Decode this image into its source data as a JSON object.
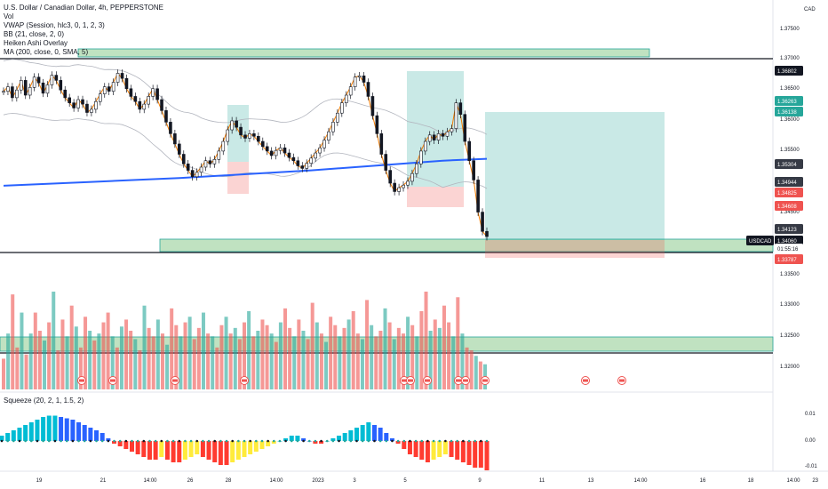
{
  "legend": {
    "symbol": "U.S. Dollar / Canadian Dollar, 4h, PEPPERSTONE",
    "lines": [
      "Vol",
      "VWAP (Session, hlc3, 0, 1, 2, 3)",
      "BB (21, close, 2, 0)",
      "Heiken Ashi Overlay",
      "MA (200, close, 0, SMA, 5)"
    ],
    "squeeze": "Squeeze (20, 2, 1, 1.5, 2)"
  },
  "currency": "CAD",
  "price_axis_ticks": [
    "1.37500",
    "1.37000",
    "1.36500",
    "1.36000",
    "1.35500",
    "1.35000",
    "1.34500",
    "1.34000",
    "1.33500",
    "1.33000",
    "1.32500",
    "1.32000"
  ],
  "price_tags": [
    {
      "text": "1.36802",
      "bg": "#131722"
    },
    {
      "text": "1.36263",
      "bg": "#26a69a"
    },
    {
      "text": "1.36138",
      "bg": "#26a69a"
    },
    {
      "text": "1.35304",
      "bg": "#363a45"
    },
    {
      "text": "1.34944",
      "bg": "#363a45"
    },
    {
      "text": "1.34825",
      "bg": "#ef5350"
    },
    {
      "text": "1.34608",
      "bg": "#ef5350"
    },
    {
      "text": "1.34123",
      "bg": "#363a45"
    },
    {
      "text": "1.34060",
      "bg": "#131722"
    },
    {
      "text": "01:55:16",
      "bg": "#ffffff"
    },
    {
      "text": "1.33787",
      "bg": "#ef5350"
    }
  ],
  "symbol_tag": "USDCAD",
  "squeeze_ticks": [
    "0.01",
    "0.00",
    "-0.01"
  ],
  "time_axis": [
    "19",
    "21",
    "14:00",
    "26",
    "28",
    "14:00",
    "2023",
    "3",
    "5",
    "9",
    "11",
    "13",
    "14:00",
    "16",
    "18",
    "14:00",
    "23"
  ],
  "colors": {
    "up": "#26a69a",
    "down": "#ef5350",
    "ma200": "#2962ff",
    "vwap": "#f57c00",
    "zone": "#a5d6a7"
  },
  "chart_data": {
    "type": "candlestick",
    "price_ylim": [
      1.317,
      1.378
    ],
    "closes": [
      1.3638,
      1.3645,
      1.3628,
      1.364,
      1.3655,
      1.3632,
      1.3644,
      1.366,
      1.3651,
      1.3635,
      1.3648,
      1.3663,
      1.3655,
      1.364,
      1.3628,
      1.362,
      1.3612,
      1.3625,
      1.3618,
      1.3605,
      1.361,
      1.3622,
      1.3634,
      1.3645,
      1.3638,
      1.3652,
      1.3666,
      1.3658,
      1.3642,
      1.363,
      1.3622,
      1.361,
      1.3618,
      1.363,
      1.3642,
      1.3625,
      1.3608,
      1.359,
      1.3572,
      1.3556,
      1.354,
      1.3525,
      1.3515,
      1.3505,
      1.3512,
      1.352,
      1.353,
      1.3525,
      1.3532,
      1.3545,
      1.356,
      1.3578,
      1.3592,
      1.3582,
      1.357,
      1.3565,
      1.3572,
      1.3568,
      1.356,
      1.3552,
      1.3545,
      1.3538,
      1.3546,
      1.355,
      1.3542,
      1.3535,
      1.353,
      1.3522,
      1.3518,
      1.3526,
      1.3534,
      1.3542,
      1.355,
      1.3562,
      1.3575,
      1.359,
      1.3604,
      1.362,
      1.3632,
      1.3645,
      1.366,
      1.3662,
      1.3652,
      1.363,
      1.36,
      1.3572,
      1.354,
      1.3515,
      1.3495,
      1.3482,
      1.3488,
      1.3492,
      1.3498,
      1.351,
      1.3525,
      1.3545,
      1.356,
      1.357,
      1.3562,
      1.3572,
      1.3568,
      1.3575,
      1.358,
      1.362,
      1.3602,
      1.356,
      1.353,
      1.35,
      1.345,
      1.342,
      1.3412
    ],
    "ma200": [
      1.3491,
      1.3494,
      1.3497,
      1.35,
      1.3503,
      1.3507,
      1.3511,
      1.3515,
      1.352,
      1.3525,
      1.353,
      1.3533
    ],
    "volume": [
      22,
      40,
      68,
      30,
      55,
      25,
      40,
      55,
      42,
      35,
      48,
      70,
      28,
      50,
      38,
      60,
      45,
      30,
      52,
      42,
      35,
      40,
      48,
      55,
      38,
      30,
      45,
      50,
      42,
      36,
      28,
      60,
      44,
      38,
      50,
      40,
      32,
      58,
      46,
      38,
      48,
      52,
      36,
      44,
      55,
      40,
      38,
      30,
      46,
      52,
      40,
      44,
      36,
      48,
      56,
      38,
      42,
      50,
      46,
      40,
      34,
      48,
      58,
      44,
      38,
      50,
      42,
      36,
      62,
      48,
      40,
      34,
      52,
      46,
      38,
      44,
      50,
      56,
      40,
      36,
      64,
      46,
      38,
      42,
      58,
      48,
      36,
      44,
      40,
      52,
      46,
      38,
      56,
      70,
      42,
      50,
      44,
      60,
      48,
      38,
      66,
      40,
      30,
      28,
      24,
      20,
      18
    ],
    "squeeze": [
      0.002,
      0.003,
      0.004,
      0.005,
      0.006,
      0.007,
      0.008,
      0.009,
      0.0095,
      0.0095,
      0.009,
      0.0085,
      0.008,
      0.007,
      0.006,
      0.005,
      0.004,
      0.003,
      0.001,
      -0.001,
      -0.002,
      -0.003,
      -0.004,
      -0.005,
      -0.006,
      -0.007,
      -0.007,
      -0.006,
      -0.007,
      -0.008,
      -0.008,
      -0.007,
      -0.006,
      -0.005,
      -0.006,
      -0.007,
      -0.008,
      -0.009,
      -0.009,
      -0.008,
      -0.007,
      -0.006,
      -0.005,
      -0.004,
      -0.003,
      -0.002,
      -0.001,
      0.0,
      0.001,
      0.002,
      0.002,
      0.001,
      0.0,
      -0.001,
      -0.001,
      0.0,
      0.001,
      0.002,
      0.003,
      0.004,
      0.005,
      0.006,
      0.007,
      0.006,
      0.005,
      0.003,
      0.001,
      -0.001,
      -0.003,
      -0.005,
      -0.006,
      -0.007,
      -0.008,
      -0.007,
      -0.006,
      -0.005,
      -0.006,
      -0.007,
      -0.008,
      -0.009,
      -0.01,
      -0.01,
      -0.011
    ]
  }
}
